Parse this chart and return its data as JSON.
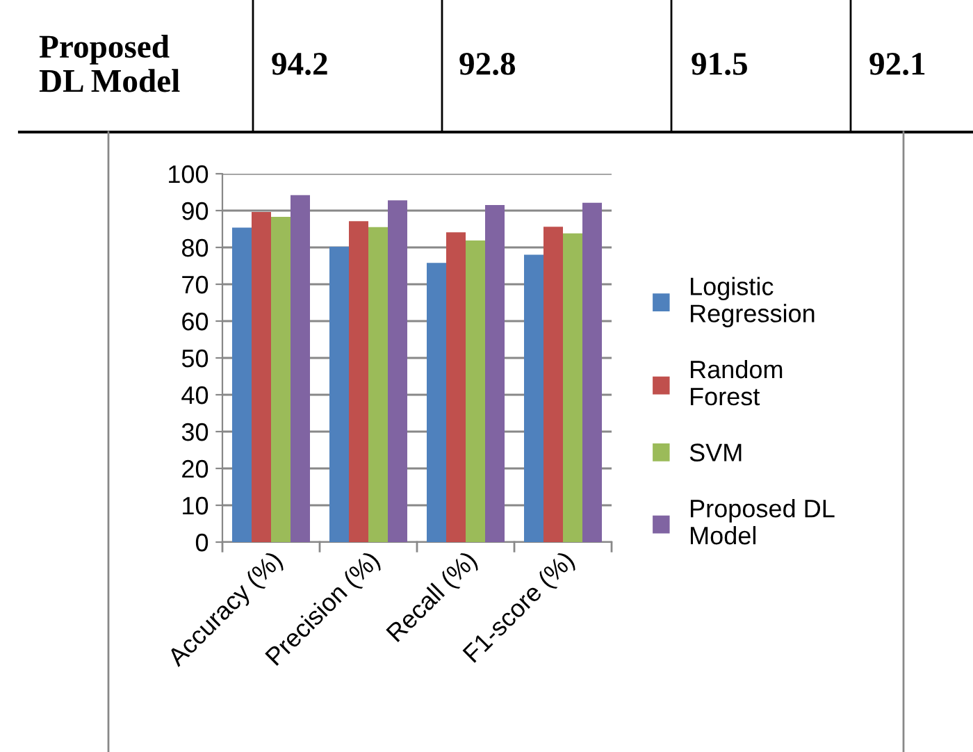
{
  "chart_data": {
    "type": "bar",
    "categories": [
      "Accuracy (%)",
      "Precision (%)",
      "Recall (%)",
      "F1-score (%)"
    ],
    "series": [
      {
        "name": "Logistic Regression",
        "color": "#4f81bd",
        "values": [
          85.4,
          80.2,
          75.8,
          78.0
        ]
      },
      {
        "name": "Random Forest",
        "color": "#c0504d",
        "values": [
          89.6,
          87.1,
          84.1,
          85.6
        ]
      },
      {
        "name": "SVM",
        "color": "#9bbb59",
        "values": [
          88.3,
          85.5,
          81.9,
          83.8
        ]
      },
      {
        "name": "Proposed DL Model",
        "color": "#8064a2",
        "values": [
          94.2,
          92.8,
          91.5,
          92.1
        ]
      }
    ],
    "annotations": [
      "Proposed DL Model",
      "94.2",
      "92.8",
      "91.5",
      "92.1"
    ],
    "ylim": [
      0,
      100
    ],
    "yticks": [
      0,
      10,
      20,
      30,
      40,
      50,
      60,
      70,
      80,
      90,
      100
    ],
    "grid": "y",
    "legend": "right"
  }
}
